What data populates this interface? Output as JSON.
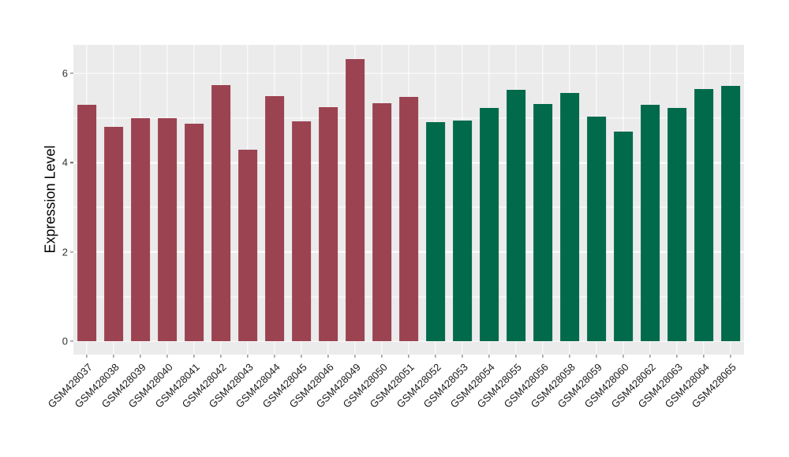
{
  "chart_data": {
    "type": "bar",
    "title": "",
    "xlabel": "",
    "ylabel": "Expression Level",
    "legend_position": "none",
    "grid": "on",
    "panel_background": "#EBEBEB",
    "grid_color": "#FFFFFF",
    "tick_color": "#666666",
    "axis_text_color": "#1a1a1a",
    "yticks": [
      0,
      2,
      4,
      6
    ],
    "yticks_minor": [
      1,
      3,
      5
    ],
    "ylim_display": [
      -0.3,
      6.64
    ],
    "bar_width_fraction": 0.7,
    "group_colors": {
      "group1": "#9B4351",
      "group2": "#016A4B"
    },
    "categories": [
      "GSM428037",
      "GSM428038",
      "GSM428039",
      "GSM428040",
      "GSM428041",
      "GSM428042",
      "GSM428043",
      "GSM428044",
      "GSM428045",
      "GSM428046",
      "GSM428049",
      "GSM428050",
      "GSM428051",
      "GSM428052",
      "GSM428053",
      "GSM428054",
      "GSM428055",
      "GSM428056",
      "GSM428058",
      "GSM428059",
      "GSM428060",
      "GSM428062",
      "GSM428063",
      "GSM428064",
      "GSM428065"
    ],
    "values": [
      5.3,
      4.81,
      5.0,
      5.0,
      4.88,
      5.74,
      4.3,
      5.5,
      4.93,
      5.24,
      6.32,
      5.33,
      5.48,
      4.91,
      4.95,
      5.23,
      5.64,
      5.32,
      5.57,
      5.03,
      4.69,
      5.3,
      5.22,
      5.65,
      5.72
    ],
    "groups": [
      "group1",
      "group1",
      "group1",
      "group1",
      "group1",
      "group1",
      "group1",
      "group1",
      "group1",
      "group1",
      "group1",
      "group1",
      "group1",
      "group2",
      "group2",
      "group2",
      "group2",
      "group2",
      "group2",
      "group2",
      "group2",
      "group2",
      "group2",
      "group2",
      "group2"
    ]
  }
}
